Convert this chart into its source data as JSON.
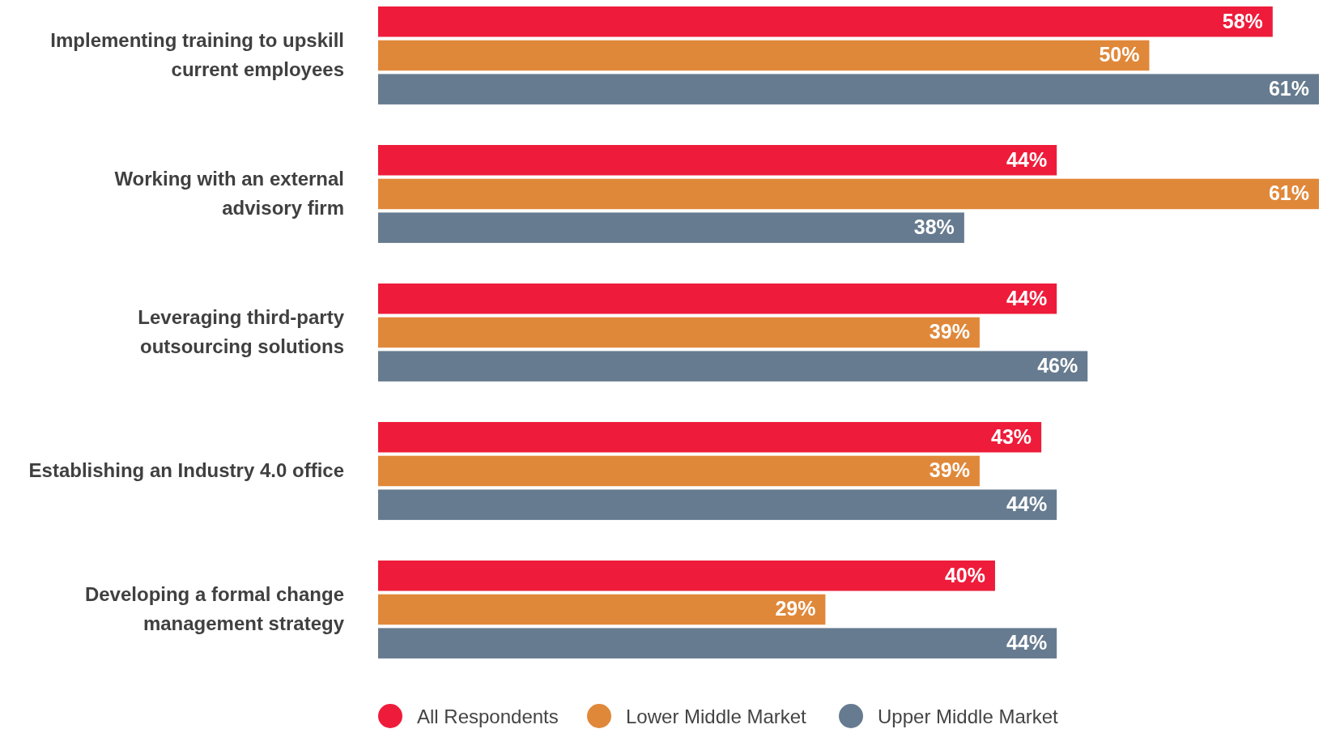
{
  "chart_data": {
    "type": "bar",
    "orientation": "horizontal",
    "categories": [
      "Implementing training to upskill current employees",
      "Working with an external advisory firm",
      "Leveraging third-party outsourcing solutions",
      "Establishing an Industry 4.0 office",
      "Developing a formal change management strategy"
    ],
    "series": [
      {
        "name": "All Respondents",
        "color": "#ee1c3a",
        "values": [
          58,
          44,
          44,
          43,
          40
        ],
        "value_labels": [
          "58%",
          "44%",
          "44%",
          "43%",
          "40%"
        ]
      },
      {
        "name": "Lower Middle Market",
        "color": "#e0883a",
        "values": [
          50,
          61,
          39,
          39,
          29
        ],
        "value_labels": [
          "50%",
          "61%",
          "39%",
          "39%",
          "29%"
        ]
      },
      {
        "name": "Upper Middle Market",
        "color": "#667b8f",
        "values": [
          61,
          38,
          46,
          44,
          44
        ],
        "value_labels": [
          "61%",
          "38%",
          "46%",
          "44%",
          "44%"
        ]
      }
    ],
    "legend": "bottom",
    "tick_labels": "y"
  }
}
